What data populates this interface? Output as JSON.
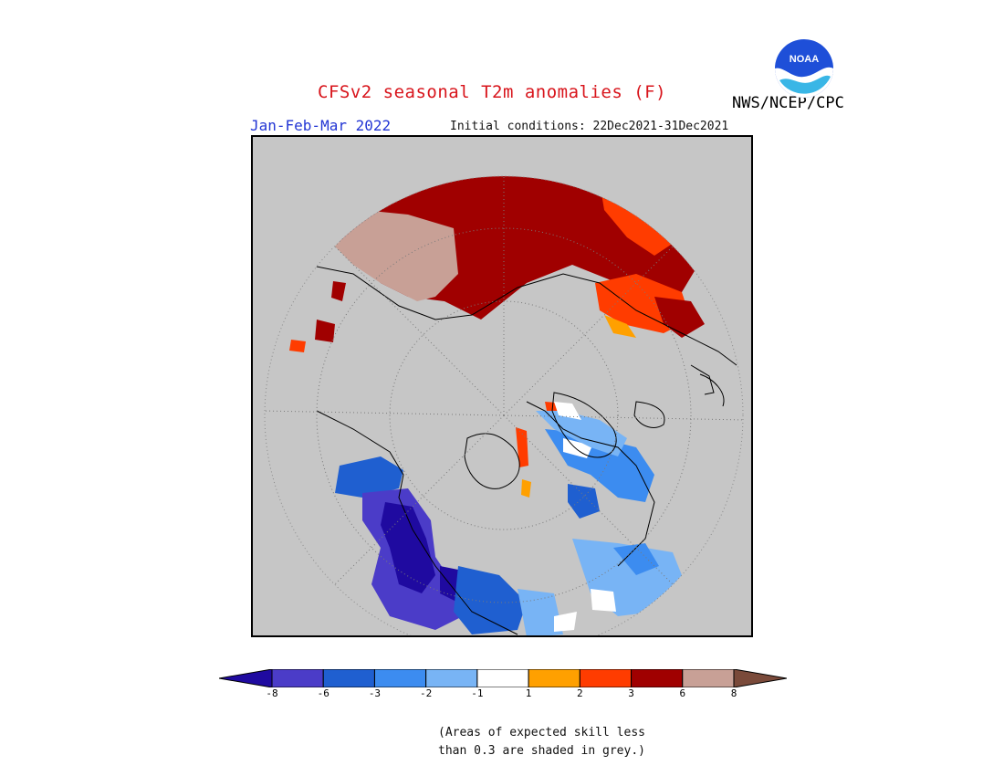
{
  "title": "CFSv2 seasonal T2m anomalies (F)",
  "season": "Jan-Feb-Mar 2022",
  "initial_conditions": "Initial conditions: 22Dec2021-31Dec2021",
  "agency": "NWS/NCEP/CPC",
  "logo": {
    "text": "NOAA",
    "icon": "noaa-logo-icon"
  },
  "map": {
    "projection": "polar-stereographic",
    "background_color": "#c6c6c6"
  },
  "legend": {
    "tick_labels": [
      "-8",
      "-6",
      "-3",
      "-2",
      "-1",
      "1",
      "2",
      "3",
      "6",
      "8"
    ],
    "colors": [
      "#1f0aa0",
      "#4b3cc8",
      "#1f5fd0",
      "#3c8cf0",
      "#78b4f5",
      "#ffffff",
      "#ffa000",
      "#ff3c00",
      "#a00000",
      "#c8a096",
      "#7a4a3a"
    ]
  },
  "note": {
    "line1": "(Areas of expected skill less",
    "line2": "than 0.3 are shaded in grey.)"
  }
}
